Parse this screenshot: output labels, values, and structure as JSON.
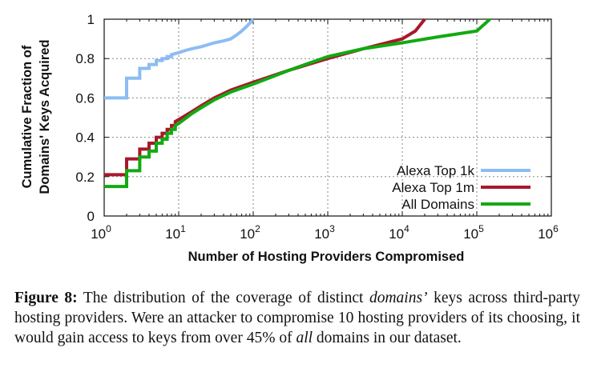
{
  "chart_data": {
    "type": "line",
    "ylabel_line1": "Cumulative Fraction of",
    "ylabel_line2": "Domains' Keys Acquired",
    "xlabel": "Number of Hosting Providers Compromised",
    "xscale": "log",
    "xlim": [
      1,
      1000000
    ],
    "ylim": [
      0,
      1
    ],
    "x_ticks": [
      {
        "base": "10",
        "exp": "0"
      },
      {
        "base": "10",
        "exp": "1"
      },
      {
        "base": "10",
        "exp": "2"
      },
      {
        "base": "10",
        "exp": "3"
      },
      {
        "base": "10",
        "exp": "4"
      },
      {
        "base": "10",
        "exp": "5"
      },
      {
        "base": "10",
        "exp": "6"
      }
    ],
    "y_ticks": [
      "0",
      "0.2",
      "0.4",
      "0.6",
      "0.8",
      "1"
    ],
    "grid": true,
    "legend_position": "bottom-right",
    "series": [
      {
        "name": "Alexa Top 1k",
        "color": "#8cbcf4",
        "points": [
          [
            1,
            0.6
          ],
          [
            2,
            0.6
          ],
          [
            2,
            0.7
          ],
          [
            3,
            0.7
          ],
          [
            3,
            0.75
          ],
          [
            4,
            0.75
          ],
          [
            4,
            0.77
          ],
          [
            5,
            0.77
          ],
          [
            5,
            0.79
          ],
          [
            6,
            0.79
          ],
          [
            6,
            0.8
          ],
          [
            7,
            0.8
          ],
          [
            7,
            0.81
          ],
          [
            8,
            0.81
          ],
          [
            8,
            0.82
          ],
          [
            10,
            0.83
          ],
          [
            12,
            0.84
          ],
          [
            15,
            0.85
          ],
          [
            20,
            0.86
          ],
          [
            30,
            0.88
          ],
          [
            40,
            0.89
          ],
          [
            50,
            0.9
          ],
          [
            60,
            0.92
          ],
          [
            70,
            0.94
          ],
          [
            80,
            0.96
          ],
          [
            90,
            0.98
          ],
          [
            100,
            1.0
          ]
        ]
      },
      {
        "name": "Alexa Top 1m",
        "color": "#a8182c",
        "points": [
          [
            1,
            0.21
          ],
          [
            2,
            0.21
          ],
          [
            2,
            0.29
          ],
          [
            3,
            0.29
          ],
          [
            3,
            0.34
          ],
          [
            4,
            0.34
          ],
          [
            4,
            0.37
          ],
          [
            5,
            0.37
          ],
          [
            5,
            0.4
          ],
          [
            6,
            0.4
          ],
          [
            6,
            0.42
          ],
          [
            7,
            0.42
          ],
          [
            7,
            0.44
          ],
          [
            8,
            0.44
          ],
          [
            8,
            0.46
          ],
          [
            9,
            0.46
          ],
          [
            9,
            0.48
          ],
          [
            10,
            0.49
          ],
          [
            15,
            0.53
          ],
          [
            20,
            0.56
          ],
          [
            30,
            0.6
          ],
          [
            50,
            0.64
          ],
          [
            100,
            0.68
          ],
          [
            300,
            0.74
          ],
          [
            1000,
            0.8
          ],
          [
            3000,
            0.85
          ],
          [
            10000,
            0.9
          ],
          [
            15000,
            0.94
          ],
          [
            20000,
            1.0
          ]
        ]
      },
      {
        "name": "All Domains",
        "color": "#11aa11",
        "points": [
          [
            1,
            0.15
          ],
          [
            2,
            0.15
          ],
          [
            2,
            0.23
          ],
          [
            3,
            0.23
          ],
          [
            3,
            0.3
          ],
          [
            4,
            0.3
          ],
          [
            4,
            0.33
          ],
          [
            5,
            0.33
          ],
          [
            5,
            0.37
          ],
          [
            6,
            0.37
          ],
          [
            6,
            0.39
          ],
          [
            7,
            0.39
          ],
          [
            7,
            0.42
          ],
          [
            8,
            0.42
          ],
          [
            8,
            0.44
          ],
          [
            9,
            0.44
          ],
          [
            9,
            0.46
          ],
          [
            10,
            0.47
          ],
          [
            15,
            0.52
          ],
          [
            20,
            0.55
          ],
          [
            30,
            0.59
          ],
          [
            50,
            0.63
          ],
          [
            100,
            0.67
          ],
          [
            300,
            0.74
          ],
          [
            1000,
            0.81
          ],
          [
            3000,
            0.85
          ],
          [
            10000,
            0.88
          ],
          [
            30000,
            0.91
          ],
          [
            100000,
            0.94
          ],
          [
            150000,
            1.0
          ]
        ]
      }
    ]
  },
  "caption": {
    "label": "Figure 8:",
    "text_a": "The distribution of the coverage of distinct ",
    "text_a_italic": "domains’",
    "text_b": "keys across third-party hosting providers. Were an attacker to compromise 10 hosting providers of its choosing, it would gain access to keys from over 45% of ",
    "text_b_italic": "all",
    "text_c": " domains in our dataset."
  }
}
